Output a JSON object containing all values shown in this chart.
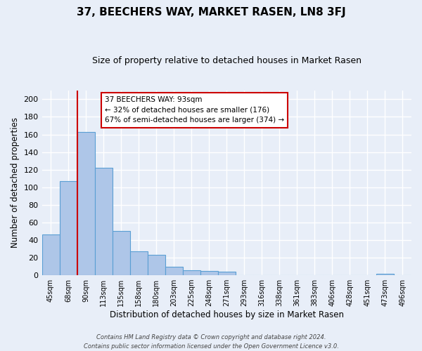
{
  "title": "37, BEECHERS WAY, MARKET RASEN, LN8 3FJ",
  "subtitle": "Size of property relative to detached houses in Market Rasen",
  "xlabel": "Distribution of detached houses by size in Market Rasen",
  "ylabel": "Number of detached properties",
  "bar_values": [
    46,
    107,
    163,
    122,
    50,
    27,
    23,
    10,
    6,
    5,
    4,
    0,
    0,
    0,
    0,
    0,
    0,
    0,
    0,
    2,
    0
  ],
  "bar_labels": [
    "45sqm",
    "68sqm",
    "90sqm",
    "113sqm",
    "135sqm",
    "158sqm",
    "180sqm",
    "203sqm",
    "225sqm",
    "248sqm",
    "271sqm",
    "293sqm",
    "316sqm",
    "338sqm",
    "361sqm",
    "383sqm",
    "406sqm",
    "428sqm",
    "451sqm",
    "473sqm",
    "496sqm"
  ],
  "ylim": [
    0,
    210
  ],
  "yticks": [
    0,
    20,
    40,
    60,
    80,
    100,
    120,
    140,
    160,
    180,
    200
  ],
  "bar_color": "#aec6e8",
  "bar_edge_color": "#5a9fd4",
  "bg_color": "#e8eef8",
  "grid_color": "#ffffff",
  "vline_x_index": 2,
  "vline_color": "#cc0000",
  "annotation_title": "37 BEECHERS WAY: 93sqm",
  "annotation_line1": "← 32% of detached houses are smaller (176)",
  "annotation_line2": "67% of semi-detached houses are larger (374) →",
  "annotation_box_edge": "#cc0000",
  "footer1": "Contains HM Land Registry data © Crown copyright and database right 2024.",
  "footer2": "Contains public sector information licensed under the Open Government Licence v3.0."
}
